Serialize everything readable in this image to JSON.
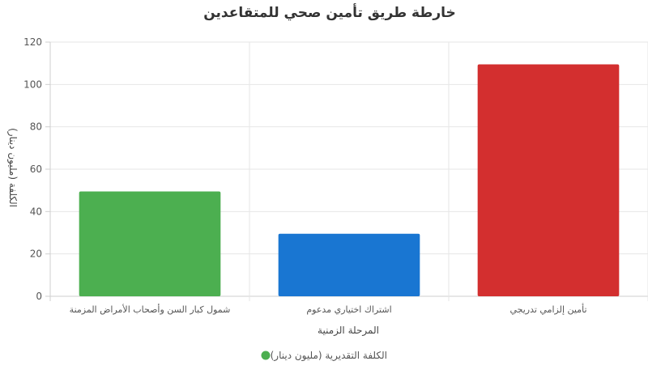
{
  "chart_data": {
    "type": "bar",
    "title": "خارطة طريق تأمين صحي للمتقاعدين",
    "xlabel": "المرحلة الزمنية",
    "ylabel": "الكلفة (مليون دينار)",
    "categories": [
      "شمول كبار السن وأصحاب الأمراض المزمنة",
      "اشتراك اختياري مدعوم",
      "تأمين إلزامي تدريجي"
    ],
    "series": [
      {
        "name": "الكلفة التقديرية (مليون دينار)",
        "values": [
          49.5,
          29.5,
          109.5
        ],
        "colors": [
          "#4caf50",
          "#1976d2",
          "#d32f2f"
        ]
      }
    ],
    "ylim": [
      0,
      120
    ],
    "yticks": [
      0,
      20,
      40,
      60,
      80,
      100,
      120
    ],
    "grid": true,
    "legend_position": "bottom",
    "legend_marker_color": "#4caf50"
  }
}
